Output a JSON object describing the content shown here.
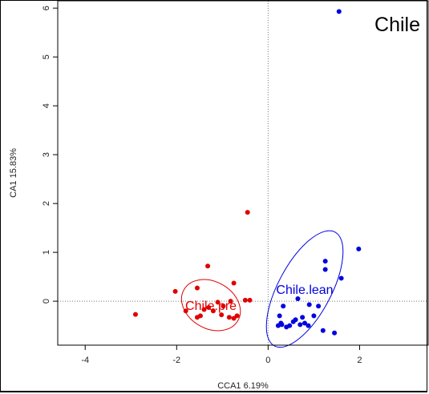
{
  "chart_data": {
    "type": "scatter",
    "title": "Chile",
    "xlabel": "CCA1  6.19%",
    "ylabel": "CA1 15.83%",
    "xlim": [
      -4.6,
      3.5
    ],
    "ylim": [
      -0.9,
      6.15
    ],
    "xticks": [
      -4,
      -2,
      0,
      2
    ],
    "yticks": [
      0,
      1,
      2,
      3,
      4,
      5,
      6
    ],
    "grid": false,
    "reference_lines": {
      "x": 0,
      "y": 0,
      "style": "dotted"
    },
    "series": [
      {
        "name": "Chile.pre",
        "color": "#e00000",
        "ellipse": {
          "cx": -1.25,
          "cy": -0.08,
          "rx": 0.68,
          "ry": 0.48,
          "angle": 30
        },
        "points": [
          [
            -2.9,
            -0.27
          ],
          [
            -2.03,
            0.2
          ],
          [
            -1.8,
            -0.2
          ],
          [
            -1.55,
            0.27
          ],
          [
            -1.55,
            -0.33
          ],
          [
            -1.48,
            -0.3
          ],
          [
            -1.4,
            -0.17
          ],
          [
            -1.32,
            0.72
          ],
          [
            -1.3,
            -0.13
          ],
          [
            -1.2,
            -0.2
          ],
          [
            -1.1,
            -0.02
          ],
          [
            -1.02,
            -0.28
          ],
          [
            -0.98,
            -0.1
          ],
          [
            -0.82,
            0.0
          ],
          [
            -0.75,
            -0.35
          ],
          [
            -0.75,
            0.37
          ],
          [
            -0.68,
            -0.3
          ],
          [
            -0.5,
            0.02
          ],
          [
            -0.45,
            1.82
          ],
          [
            -0.4,
            0.02
          ],
          [
            -0.85,
            -0.33
          ]
        ]
      },
      {
        "name": "Chile.lean",
        "color": "#0000e0",
        "ellipse": {
          "cx": 0.8,
          "cy": 0.25,
          "rx": 0.58,
          "ry": 1.32,
          "angle": 28
        },
        "points": [
          [
            0.22,
            -0.5
          ],
          [
            0.25,
            -0.3
          ],
          [
            0.28,
            -0.45
          ],
          [
            0.3,
            -0.48
          ],
          [
            0.33,
            -0.1
          ],
          [
            0.4,
            -0.53
          ],
          [
            0.47,
            -0.5
          ],
          [
            0.55,
            -0.42
          ],
          [
            0.6,
            -0.38
          ],
          [
            0.65,
            0.05
          ],
          [
            0.7,
            -0.48
          ],
          [
            0.75,
            -0.33
          ],
          [
            0.8,
            -0.45
          ],
          [
            0.88,
            -0.5
          ],
          [
            0.9,
            -0.07
          ],
          [
            1.0,
            -0.3
          ],
          [
            1.1,
            -0.1
          ],
          [
            1.2,
            -0.6
          ],
          [
            1.25,
            0.82
          ],
          [
            1.25,
            0.65
          ],
          [
            1.45,
            -0.65
          ],
          [
            1.6,
            0.47
          ],
          [
            1.98,
            1.07
          ],
          [
            1.55,
            5.93
          ]
        ]
      }
    ]
  }
}
